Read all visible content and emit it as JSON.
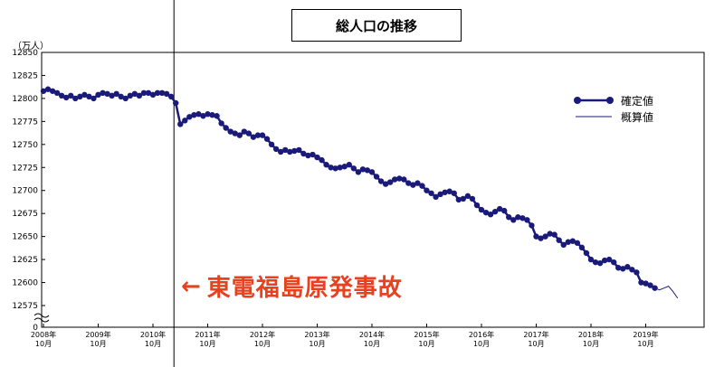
{
  "header": {
    "title": "総人口の推移"
  },
  "axis": {
    "y_unit": "（万人）"
  },
  "legend": {
    "items": [
      {
        "label": "確定値",
        "color": "#1a1a7a",
        "style": "line-marker"
      },
      {
        "label": "概算値",
        "color": "#1a1a7a",
        "style": "line"
      }
    ]
  },
  "annotation": {
    "arrow": "←",
    "text": "東電福島原発事故"
  },
  "chart_data": {
    "type": "line",
    "title": "総人口の推移",
    "ylabel": "（万人）",
    "ylim": [
      12550,
      12850
    ],
    "yticks_upper": [
      12850,
      12825,
      12800,
      12775,
      12750,
      12725,
      12700,
      12675,
      12650,
      12625,
      12600,
      12575
    ],
    "y_zero_label": "0",
    "y_break": true,
    "x_tick_labels": [
      [
        "2008年",
        "10月"
      ],
      [
        "2009年",
        "10月"
      ],
      [
        "2010年",
        "10月"
      ],
      [
        "2011年",
        "10月"
      ],
      [
        "2012年",
        "10月"
      ],
      [
        "2013年",
        "10月"
      ],
      [
        "2014年",
        "10月"
      ],
      [
        "2015年",
        "10月"
      ],
      [
        "2016年",
        "10月"
      ],
      [
        "2017年",
        "10月"
      ],
      [
        "2018年",
        "10月"
      ],
      [
        "2019年",
        "10月"
      ]
    ],
    "start": "2008-10",
    "event_marker": {
      "date": "2011-03"
    },
    "series": [
      {
        "name": "確定値",
        "color": "#1a1a7a",
        "values": [
          12808,
          12810,
          12808,
          12806,
          12803,
          12801,
          12803,
          12800,
          12802,
          12804,
          12802,
          12800,
          12804,
          12806,
          12805,
          12803,
          12805,
          12802,
          12800,
          12803,
          12805,
          12803,
          12806,
          12806,
          12804,
          12806,
          12806,
          12805,
          12802,
          12795,
          12772,
          12776,
          12780,
          12782,
          12783,
          12781,
          12783,
          12782,
          12781,
          12773,
          12768,
          12764,
          12762,
          12760,
          12764,
          12762,
          12758,
          12760,
          12760,
          12756,
          12750,
          12745,
          12742,
          12744,
          12742,
          12743,
          12744,
          12740,
          12738,
          12739,
          12736,
          12733,
          12728,
          12725,
          12724,
          12725,
          12726,
          12728,
          12724,
          12720,
          12723,
          12722,
          12720,
          12715,
          12710,
          12707,
          12709,
          12712,
          12713,
          12712,
          12708,
          12706,
          12708,
          12705,
          12700,
          12697,
          12693,
          12696,
          12698,
          12699,
          12697,
          12690,
          12691,
          12694,
          12691,
          12684,
          12679,
          12676,
          12674,
          12677,
          12680,
          12678,
          12671,
          12668,
          12671,
          12670,
          12668,
          12662,
          12650,
          12648,
          12650,
          12653,
          12652,
          12646,
          12641,
          12644,
          12645,
          12643,
          12638,
          12632,
          12625,
          12622,
          12621,
          12624,
          12625,
          12622,
          12616,
          12615,
          12617,
          12614,
          12611,
          12600,
          12599,
          12597,
          12594
        ]
      },
      {
        "name": "概算値",
        "color": "#1a1a7a",
        "values": [
          12594,
          12592,
          12594,
          12596,
          12590,
          12583
        ]
      }
    ],
    "grid": false,
    "legend_position": "top-right"
  }
}
